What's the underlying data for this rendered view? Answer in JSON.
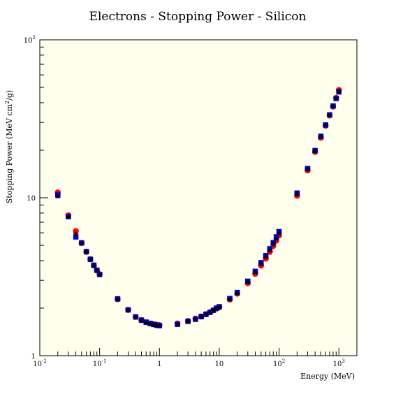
{
  "chart_data": {
    "type": "scatter",
    "title": "Electrons - Stopping Power - Silicon",
    "xlabel": "Energy (MeV)",
    "ylabel": "Stopping Power (MeV cm",
    "ylabel_sup": "2",
    "ylabel_end": "/g)",
    "xscale": "log",
    "yscale": "log",
    "xlim": [
      0.01,
      2000
    ],
    "ylim": [
      1,
      100
    ],
    "grid": false,
    "legend": "none",
    "x_ticks": [
      {
        "base": "10",
        "exp": "-2",
        "value": 0.01
      },
      {
        "base": "10",
        "exp": "-1",
        "value": 0.1
      },
      {
        "base": "1",
        "exp": "",
        "value": 1
      },
      {
        "base": "10",
        "exp": "",
        "value": 10
      },
      {
        "base": "10",
        "exp": "2",
        "value": 100
      },
      {
        "base": "10",
        "exp": "3",
        "value": 1000
      }
    ],
    "y_ticks": [
      {
        "base": "1",
        "exp": "",
        "value": 1
      },
      {
        "base": "10",
        "exp": "",
        "value": 10
      },
      {
        "base": "10",
        "exp": "2",
        "value": 100
      }
    ],
    "x": [
      0.02,
      0.03,
      0.04,
      0.05,
      0.06,
      0.07,
      0.08,
      0.09,
      0.1,
      0.2,
      0.3,
      0.4,
      0.5,
      0.6,
      0.7,
      0.8,
      0.9,
      1,
      2,
      3,
      4,
      5,
      6,
      7,
      8,
      9,
      10,
      15,
      20,
      30,
      40,
      50,
      60,
      70,
      80,
      90,
      100,
      200,
      300,
      400,
      500,
      600,
      700,
      800,
      900,
      1000
    ],
    "series": [
      {
        "marker": "circle",
        "color": "#ff0000",
        "values": [
          10.8,
          7.75,
          6.15,
          5.17,
          4.55,
          4.08,
          3.73,
          3.47,
          3.28,
          2.28,
          1.95,
          1.76,
          1.68,
          1.63,
          1.6,
          1.58,
          1.57,
          1.56,
          1.6,
          1.66,
          1.72,
          1.77,
          1.83,
          1.89,
          1.94,
          1.99,
          2.03,
          2.27,
          2.47,
          2.88,
          3.3,
          3.72,
          4.12,
          4.54,
          4.95,
          5.35,
          5.78,
          10.3,
          14.9,
          19.5,
          24.0,
          28.6,
          33.2,
          37.8,
          42.9,
          48.1
        ]
      },
      {
        "marker": "square",
        "color": "#0000cc",
        "values": [
          10.4,
          7.6,
          5.65,
          5.18,
          4.56,
          4.08,
          3.74,
          3.48,
          3.27,
          2.29,
          1.95,
          1.76,
          1.68,
          1.63,
          1.6,
          1.58,
          1.56,
          1.55,
          1.58,
          1.65,
          1.7,
          1.77,
          1.83,
          1.88,
          1.94,
          2.0,
          2.04,
          2.3,
          2.51,
          2.96,
          3.42,
          3.88,
          4.3,
          4.75,
          5.2,
          5.65,
          6.1,
          10.7,
          15.3,
          19.9,
          24.5,
          28.9,
          33.5,
          38.1,
          42.5,
          46.8
        ]
      },
      {
        "marker": "star",
        "color": "#000000",
        "values": [
          10.2,
          7.55,
          5.9,
          5.15,
          4.52,
          4.05,
          3.7,
          3.44,
          3.25,
          2.27,
          1.94,
          1.75,
          1.67,
          1.62,
          1.59,
          1.57,
          1.55,
          1.55,
          1.58,
          1.64,
          1.7,
          1.76,
          1.82,
          1.87,
          1.93,
          1.98,
          2.02,
          2.27,
          2.48,
          2.92,
          3.36,
          3.8,
          4.22,
          4.65,
          5.08,
          5.5,
          5.94,
          10.5,
          15.1,
          19.7,
          24.2,
          28.7,
          33.3,
          37.9,
          42.7,
          47.2
        ]
      }
    ]
  }
}
